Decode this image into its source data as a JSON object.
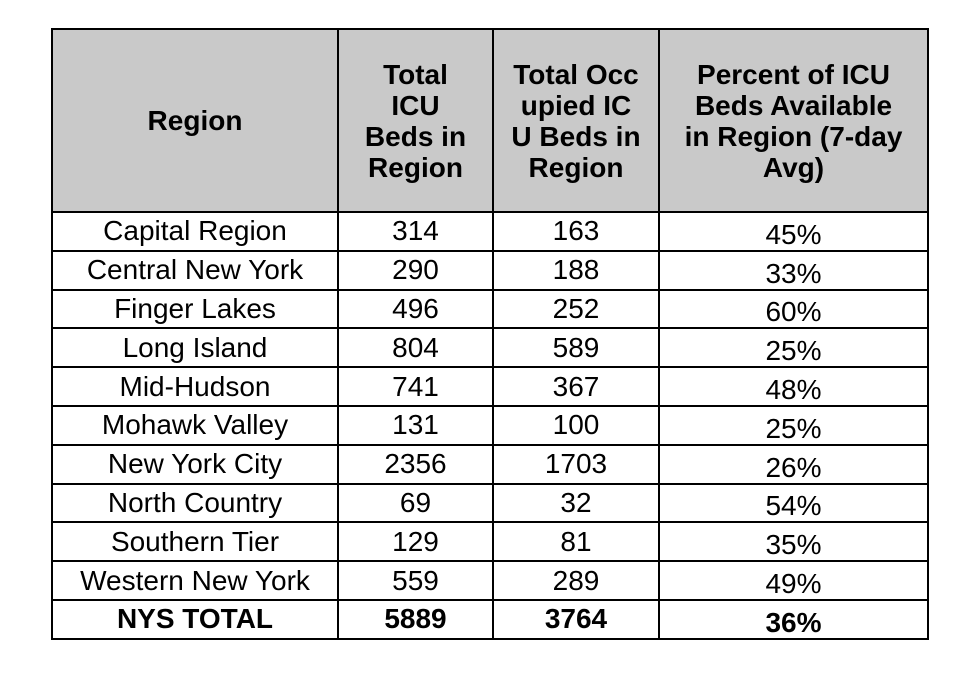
{
  "headers": {
    "region": "Region",
    "total": "Total ICU Beds in Region",
    "occupied": "Total Occupied ICU Beds in Region",
    "percent": "Percent of ICU Beds Available in Region (7-day Avg)"
  },
  "rows": [
    {
      "region": "Capital Region",
      "total": "314",
      "occupied": "163",
      "percent": "45%"
    },
    {
      "region": "Central New York",
      "total": "290",
      "occupied": "188",
      "percent": "33%"
    },
    {
      "region": "Finger Lakes",
      "total": "496",
      "occupied": "252",
      "percent": "60%"
    },
    {
      "region": "Long Island",
      "total": "804",
      "occupied": "589",
      "percent": "25%"
    },
    {
      "region": "Mid-Hudson",
      "total": "741",
      "occupied": "367",
      "percent": "48%"
    },
    {
      "region": "Mohawk Valley",
      "total": "131",
      "occupied": "100",
      "percent": "25%"
    },
    {
      "region": "New York City",
      "total": "2356",
      "occupied": "1703",
      "percent": "26%"
    },
    {
      "region": "North Country",
      "total": "69",
      "occupied": "32",
      "percent": "54%"
    },
    {
      "region": "Southern Tier",
      "total": "129",
      "occupied": "81",
      "percent": "35%"
    },
    {
      "region": "Western New York",
      "total": "559",
      "occupied": "289",
      "percent": "49%"
    }
  ],
  "total_row": {
    "region": "NYS TOTAL",
    "total": "5889",
    "occupied": "3764",
    "percent": "36%"
  },
  "colors": {
    "header_bg": "#c9c9c9",
    "border": "#000000",
    "text": "#000000"
  }
}
